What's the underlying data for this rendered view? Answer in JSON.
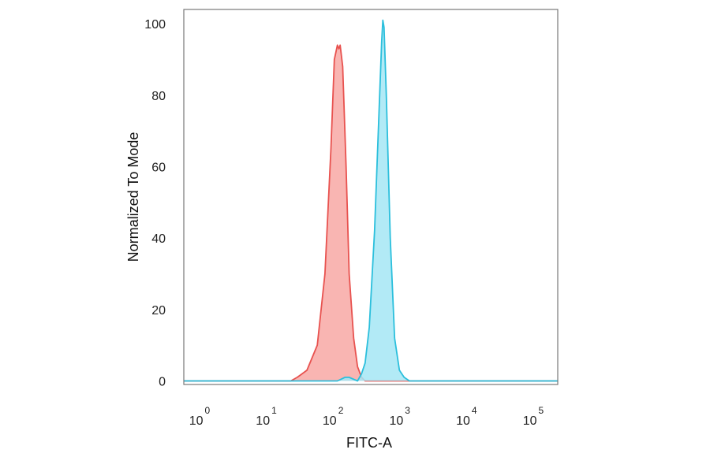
{
  "chart_data": {
    "type": "area",
    "xlabel": "FITC-A",
    "ylabel": "Normalized To Mode",
    "x_scale": "log",
    "xlim": [
      0.5,
      200000
    ],
    "ylim": [
      -1,
      104
    ],
    "x_ticks": [
      {
        "base": "10",
        "exp": "0"
      },
      {
        "base": "10",
        "exp": "1"
      },
      {
        "base": "10",
        "exp": "2"
      },
      {
        "base": "10",
        "exp": "3"
      },
      {
        "base": "10",
        "exp": "4"
      },
      {
        "base": "10",
        "exp": "5"
      }
    ],
    "y_ticks": [
      "0",
      "20",
      "40",
      "60",
      "80",
      "100"
    ],
    "grid": false,
    "series": [
      {
        "color": "#e8524f",
        "fill": "#f8a8a4",
        "x": [
          0.5,
          20,
          25,
          35,
          50,
          65,
          80,
          90,
          100,
          105,
          110,
          120,
          135,
          150,
          175,
          200,
          230,
          260,
          300,
          200000
        ],
        "y": [
          0,
          0,
          1,
          3,
          10,
          30,
          65,
          90,
          94,
          93,
          94,
          88,
          60,
          30,
          12,
          4,
          1,
          0,
          0,
          0
        ]
      },
      {
        "color": "#2bbfdc",
        "fill": "#a5e6f5",
        "x": [
          0.5,
          100,
          130,
          150,
          200,
          230,
          260,
          300,
          360,
          420,
          460,
          480,
          500,
          540,
          620,
          720,
          850,
          1000,
          1200,
          200000
        ],
        "y": [
          0,
          0,
          1,
          1,
          0,
          2,
          5,
          15,
          42,
          75,
          95,
          101,
          99,
          80,
          40,
          12,
          3,
          1,
          0,
          0
        ]
      }
    ]
  }
}
